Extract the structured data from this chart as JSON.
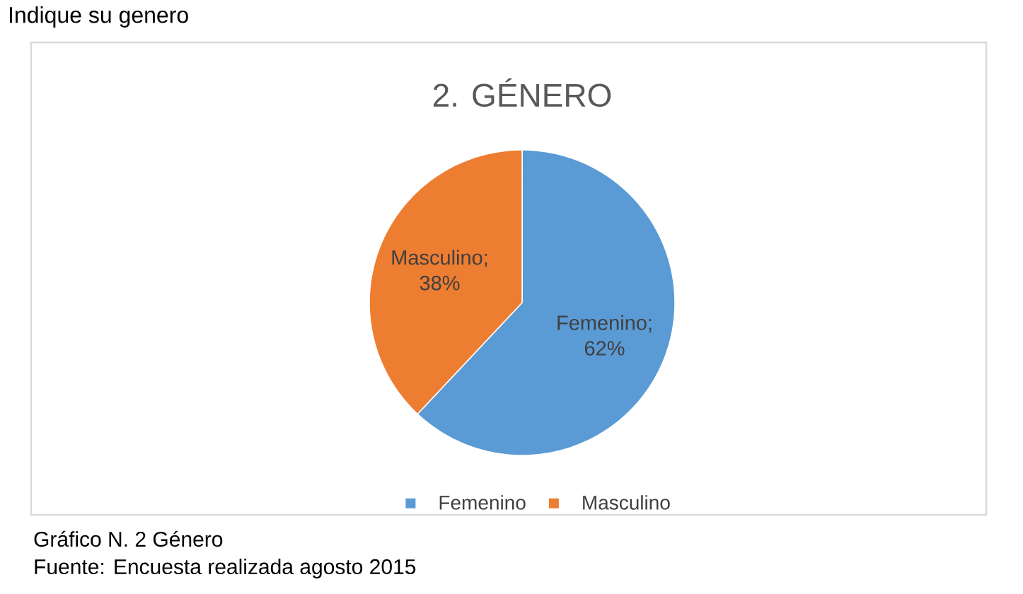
{
  "chart_data": {
    "type": "pie",
    "title": "2. GÉNERO",
    "categories": [
      "Femenino",
      "Masculino"
    ],
    "values": [
      62,
      38
    ],
    "colors": [
      "#5b9bd5",
      "#ed7d31"
    ],
    "value_labels": [
      "Femenino; 62%",
      "Masculino; 38%"
    ],
    "legend": "bottom",
    "annotations": [
      "Indique su genero",
      "Gráfico N. 2 Género",
      "Fuente: Encuesta realizada agosto 2015"
    ]
  }
}
